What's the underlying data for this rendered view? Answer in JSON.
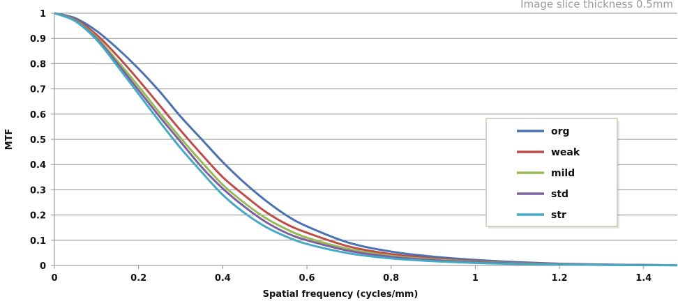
{
  "note": "Image slice thickness 0.5mm",
  "chart_data": {
    "type": "line",
    "xlabel": "Spatial frequency (cycles/mm)",
    "ylabel": "MTF",
    "xlim": [
      0,
      1.48
    ],
    "ylim": [
      0,
      1
    ],
    "x_ticks": [
      "0",
      "0.2",
      "0.4",
      "0.6",
      "0.8",
      "1",
      "1.2",
      "1.4"
    ],
    "y_ticks": [
      "0",
      "0.1",
      "0.2",
      "0.3",
      "0.4",
      "0.5",
      "0.6",
      "0.7",
      "0.8",
      "0.9",
      "1"
    ],
    "grid": "horizontal",
    "legend_position": "right",
    "x": [
      0,
      0.05,
      0.1,
      0.15,
      0.2,
      0.25,
      0.3,
      0.35,
      0.4,
      0.45,
      0.5,
      0.55,
      0.6,
      0.7,
      0.8,
      0.9,
      1.0,
      1.1,
      1.2,
      1.3,
      1.4,
      1.48
    ],
    "series": [
      {
        "name": "org",
        "color": "#4a72b0",
        "values": [
          1.0,
          0.98,
          0.93,
          0.86,
          0.78,
          0.69,
          0.59,
          0.5,
          0.41,
          0.33,
          0.26,
          0.2,
          0.155,
          0.09,
          0.055,
          0.035,
          0.022,
          0.013,
          0.007,
          0.004,
          0.002,
          0.001
        ]
      },
      {
        "name": "weak",
        "color": "#be4b48",
        "values": [
          1.0,
          0.975,
          0.915,
          0.83,
          0.735,
          0.635,
          0.535,
          0.44,
          0.35,
          0.28,
          0.215,
          0.165,
          0.13,
          0.075,
          0.045,
          0.028,
          0.017,
          0.01,
          0.006,
          0.003,
          0.002,
          0.001
        ]
      },
      {
        "name": "mild",
        "color": "#98b954",
        "values": [
          1.0,
          0.972,
          0.905,
          0.81,
          0.71,
          0.605,
          0.505,
          0.41,
          0.32,
          0.25,
          0.19,
          0.145,
          0.11,
          0.065,
          0.038,
          0.024,
          0.015,
          0.009,
          0.005,
          0.003,
          0.002,
          0.001
        ]
      },
      {
        "name": "std",
        "color": "#7d60a0",
        "values": [
          1.0,
          0.97,
          0.9,
          0.8,
          0.695,
          0.59,
          0.49,
          0.39,
          0.305,
          0.235,
          0.175,
          0.13,
          0.1,
          0.058,
          0.034,
          0.021,
          0.013,
          0.008,
          0.005,
          0.003,
          0.002,
          0.001
        ]
      },
      {
        "name": "str",
        "color": "#46aac5",
        "values": [
          1.0,
          0.968,
          0.895,
          0.79,
          0.68,
          0.57,
          0.465,
          0.37,
          0.28,
          0.21,
          0.155,
          0.115,
          0.085,
          0.048,
          0.028,
          0.017,
          0.01,
          0.006,
          0.004,
          0.002,
          0.001,
          0.001
        ]
      }
    ]
  }
}
